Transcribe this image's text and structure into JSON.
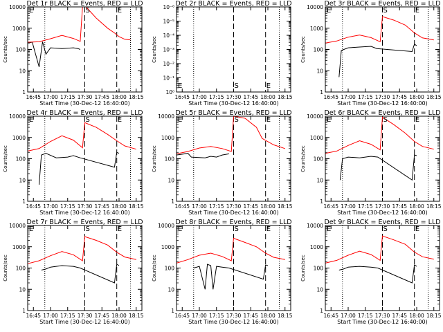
{
  "figure": {
    "x_axis_label": "Start Time (30-Dec-12 16:40:00)",
    "y_axis_label": "Counts/sec",
    "colors": {
      "events": "#000000",
      "lld": "#ff0000",
      "axes": "#000000"
    },
    "x_ticks": [
      "16:45",
      "17:00",
      "17:15",
      "17:30",
      "17:45",
      "18:00",
      "18:15"
    ],
    "markers": {
      "start": "S",
      "end": "E"
    }
  },
  "chart_data": [
    {
      "type": "line",
      "title": "Det 1r BLACK = Events, RED = LLD",
      "ylim": [
        1,
        10000
      ],
      "yscale": "log",
      "y_ticks": [
        "1",
        "10",
        "100",
        "1000",
        "10000"
      ],
      "series": [
        {
          "name": "Events",
          "x": [
            "16:40",
            "16:44",
            "16:50",
            "16:53",
            "16:56",
            "17:00",
            "17:10",
            "17:20",
            "17:24",
            "17:26"
          ],
          "y": [
            200,
            220,
            15,
            230,
            60,
            120,
            110,
            120,
            110,
            100
          ]
        },
        {
          "name": "LLD",
          "x": [
            "16:40",
            "16:50",
            "17:00",
            "17:10",
            "17:20",
            "17:26",
            "17:28",
            "17:31",
            "17:40",
            "17:50",
            "17:56",
            "18:00",
            "18:05",
            "18:10"
          ],
          "y": [
            220,
            230,
            320,
            460,
            330,
            240,
            10000,
            10000,
            3000,
            1000,
            600,
            400,
            300,
            280
          ]
        }
      ],
      "markers": {
        "S": "17:30",
        "E": "17:58"
      }
    },
    {
      "type": "line",
      "title": "Det 2r BLACK = Events, RED = LLD",
      "ylim": [
        1,
        1e-06
      ],
      "yscale": "log",
      "y_ticks": [
        "10⁰",
        "10⁻¹",
        "10⁻²",
        "10⁻³",
        "10⁻⁴",
        "10⁻⁵",
        "10⁻⁶"
      ],
      "series": [],
      "markers": {
        "S": "17:30",
        "E": "17:58"
      }
    },
    {
      "type": "line",
      "title": "Det 3r BLACK = Events, RED = LLD",
      "ylim": [
        1,
        10000
      ],
      "yscale": "log",
      "y_ticks": [
        "1",
        "10",
        "100",
        "1000",
        "10000"
      ],
      "series": [
        {
          "name": "Events",
          "x": [
            "16:52",
            "16:54",
            "17:00",
            "17:10",
            "17:20",
            "17:25",
            "17:56",
            "17:58",
            "18:00"
          ],
          "y": [
            5,
            90,
            120,
            130,
            140,
            110,
            80,
            180,
            150
          ]
        },
        {
          "name": "LLD",
          "x": [
            "16:40",
            "16:50",
            "17:00",
            "17:10",
            "17:20",
            "17:28",
            "17:30",
            "17:40",
            "17:50",
            "17:58",
            "18:05",
            "18:15"
          ],
          "y": [
            200,
            250,
            380,
            480,
            360,
            230,
            3500,
            2400,
            1400,
            600,
            350,
            280
          ]
        }
      ],
      "markers": {
        "S": "17:30",
        "E": "17:58"
      }
    },
    {
      "type": "line",
      "title": "Det 4r BLACK = Events, RED = LLD",
      "ylim": [
        1,
        10000
      ],
      "yscale": "log",
      "y_ticks": [
        "1",
        "10",
        "100",
        "1000",
        "10000"
      ],
      "series": [
        {
          "name": "Events",
          "x": [
            "16:50",
            "16:52",
            "16:56",
            "17:05",
            "17:15",
            "17:20",
            "17:26",
            "17:56",
            "17:58",
            "18:00"
          ],
          "y": [
            6,
            150,
            180,
            110,
            120,
            140,
            110,
            40,
            200,
            180
          ]
        },
        {
          "name": "LLD",
          "x": [
            "16:40",
            "16:50",
            "17:00",
            "17:10",
            "17:20",
            "17:28",
            "17:30",
            "17:40",
            "17:50",
            "17:58",
            "18:05",
            "18:15"
          ],
          "y": [
            230,
            300,
            650,
            1200,
            750,
            330,
            5000,
            3000,
            1400,
            700,
            400,
            280
          ]
        }
      ],
      "markers": {
        "S": "17:30",
        "E": "17:58"
      }
    },
    {
      "type": "line",
      "title": "Det 5r BLACK = Events, RED = LLD",
      "ylim": [
        1,
        10000
      ],
      "yscale": "log",
      "y_ticks": [
        "1",
        "10",
        "100",
        "1000",
        "10000"
      ],
      "series": [
        {
          "name": "Events",
          "x": [
            "16:40",
            "16:50",
            "16:53",
            "17:05",
            "17:10",
            "17:15",
            "17:20",
            "17:26"
          ],
          "y": [
            150,
            180,
            120,
            110,
            130,
            120,
            150,
            170
          ]
        },
        {
          "name": "LLD",
          "x": [
            "16:40",
            "16:50",
            "17:00",
            "17:10",
            "17:20",
            "17:28",
            "17:30",
            "17:40",
            "17:50",
            "17:55",
            "18:05",
            "18:15"
          ],
          "y": [
            170,
            220,
            320,
            380,
            300,
            220,
            10000,
            8000,
            3000,
            900,
            450,
            300
          ]
        }
      ],
      "markers": {
        "S": "17:30",
        "E": "17:58"
      }
    },
    {
      "type": "line",
      "title": "Det 6r BLACK = Events, RED = LLD",
      "ylim": [
        1,
        10000
      ],
      "yscale": "log",
      "y_ticks": [
        "1",
        "10",
        "100",
        "1000",
        "10000"
      ],
      "series": [
        {
          "name": "Events",
          "x": [
            "16:53",
            "16:55",
            "17:00",
            "17:10",
            "17:20",
            "17:26",
            "17:56",
            "17:58",
            "18:00"
          ],
          "y": [
            10,
            100,
            120,
            110,
            130,
            120,
            10,
            150,
            140
          ]
        },
        {
          "name": "LLD",
          "x": [
            "16:40",
            "16:50",
            "17:00",
            "17:10",
            "17:20",
            "17:28",
            "17:30",
            "17:40",
            "17:50",
            "17:58",
            "18:05",
            "18:15"
          ],
          "y": [
            180,
            230,
            420,
            700,
            480,
            260,
            9000,
            4000,
            1600,
            650,
            380,
            280
          ]
        }
      ],
      "markers": {
        "S": "17:30",
        "E": "17:58"
      }
    },
    {
      "type": "line",
      "title": "Det 7r BLACK = Events, RED = LLD",
      "ylim": [
        1,
        10000
      ],
      "yscale": "log",
      "y_ticks": [
        "1",
        "10",
        "100",
        "1000",
        "10000"
      ],
      "series": [
        {
          "name": "Events",
          "x": [
            "16:52",
            "16:56",
            "17:00",
            "17:10",
            "17:20",
            "17:26",
            "17:56",
            "17:58",
            "18:00"
          ],
          "y": [
            80,
            90,
            110,
            130,
            120,
            100,
            20,
            150,
            130
          ]
        },
        {
          "name": "LLD",
          "x": [
            "16:40",
            "16:50",
            "17:00",
            "17:10",
            "17:20",
            "17:28",
            "17:30",
            "17:40",
            "17:50",
            "17:58",
            "18:05",
            "18:15"
          ],
          "y": [
            160,
            220,
            380,
            600,
            420,
            220,
            3000,
            2000,
            1200,
            550,
            330,
            250
          ]
        }
      ],
      "markers": {
        "S": "17:30",
        "E": "17:58"
      }
    },
    {
      "type": "line",
      "title": "Det 8r BLACK = Events, RED = LLD",
      "ylim": [
        1,
        10000
      ],
      "yscale": "log",
      "y_ticks": [
        "1",
        "10",
        "100",
        "1000",
        "10000"
      ],
      "series": [
        {
          "name": "Events",
          "x": [
            "16:55",
            "17:00",
            "17:05",
            "17:07",
            "17:10",
            "17:12",
            "17:15",
            "17:20",
            "17:26",
            "17:56",
            "17:58",
            "18:00"
          ],
          "y": [
            100,
            120,
            10,
            150,
            130,
            10,
            120,
            110,
            100,
            30,
            140,
            130
          ]
        },
        {
          "name": "LLD",
          "x": [
            "16:40",
            "16:50",
            "17:00",
            "17:10",
            "17:20",
            "17:28",
            "17:30",
            "17:40",
            "17:50",
            "17:58",
            "18:05",
            "18:15"
          ],
          "y": [
            170,
            250,
            400,
            500,
            350,
            220,
            2500,
            1600,
            1000,
            500,
            320,
            250
          ]
        }
      ],
      "markers": {
        "S": "17:30",
        "E": "17:58"
      }
    },
    {
      "type": "line",
      "title": "Det 9r BLACK = Events, RED = LLD",
      "ylim": [
        1,
        10000
      ],
      "yscale": "log",
      "y_ticks": [
        "1",
        "10",
        "100",
        "1000",
        "10000"
      ],
      "series": [
        {
          "name": "Events",
          "x": [
            "16:52",
            "16:56",
            "17:00",
            "17:10",
            "17:20",
            "17:26",
            "17:56",
            "17:58",
            "18:00"
          ],
          "y": [
            80,
            90,
            110,
            120,
            110,
            100,
            20,
            140,
            120
          ]
        },
        {
          "name": "LLD",
          "x": [
            "16:40",
            "16:50",
            "17:00",
            "17:10",
            "17:20",
            "17:28",
            "17:30",
            "17:40",
            "17:50",
            "17:58",
            "18:05",
            "18:15"
          ],
          "y": [
            170,
            230,
            400,
            620,
            430,
            230,
            3200,
            2100,
            1300,
            560,
            340,
            260
          ]
        }
      ],
      "markers": {
        "S": "17:30",
        "E": "17:58"
      }
    }
  ]
}
